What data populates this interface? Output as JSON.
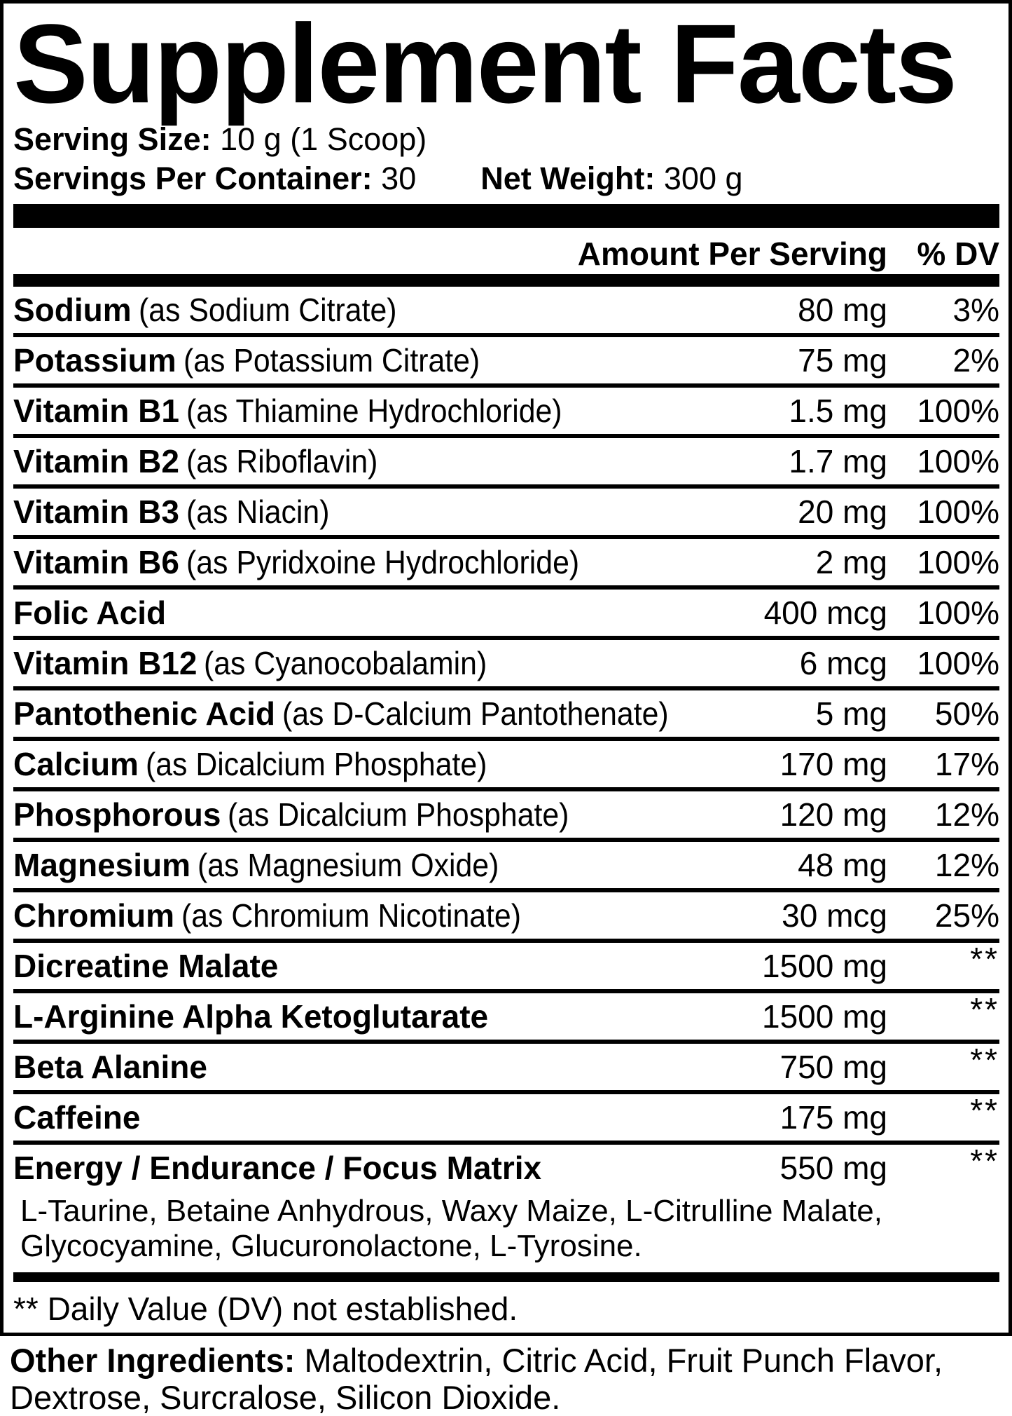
{
  "title": "Supplement Facts",
  "serving_info": {
    "serving_size_label": "Serving Size:",
    "serving_size_value": "10 g (1 Scoop)",
    "servings_per_container_label": "Servings Per Container:",
    "servings_per_container_value": "30",
    "net_weight_label": "Net Weight:",
    "net_weight_value": "300 g"
  },
  "table": {
    "header": {
      "amount": "Amount Per Serving",
      "dv": "% DV"
    },
    "rows": [
      {
        "name": "Sodium",
        "detail": "(as Sodium Citrate)",
        "amount": "80 mg",
        "dv": "3%"
      },
      {
        "name": "Potassium",
        "detail": "(as Potassium Citrate)",
        "amount": "75 mg",
        "dv": "2%"
      },
      {
        "name": "Vitamin B1",
        "detail": "(as Thiamine Hydrochloride)",
        "amount": "1.5 mg",
        "dv": "100%"
      },
      {
        "name": "Vitamin B2",
        "detail": "(as Riboflavin)",
        "amount": "1.7 mg",
        "dv": "100%"
      },
      {
        "name": "Vitamin B3",
        "detail": "(as Niacin)",
        "amount": "20 mg",
        "dv": "100%"
      },
      {
        "name": "Vitamin B6",
        "detail": "(as Pyridxoine Hydrochloride)",
        "amount": "2 mg",
        "dv": "100%"
      },
      {
        "name": "Folic Acid",
        "detail": "",
        "amount": "400 mcg",
        "dv": "100%"
      },
      {
        "name": "Vitamin B12",
        "detail": "(as Cyanocobalamin)",
        "amount": "6 mcg",
        "dv": "100%"
      },
      {
        "name": "Pantothenic Acid",
        "detail": "(as D-Calcium Pantothenate)",
        "amount": "5 mg",
        "dv": "50%"
      },
      {
        "name": "Calcium",
        "detail": "(as Dicalcium Phosphate)",
        "amount": "170 mg",
        "dv": "17%"
      },
      {
        "name": "Phosphorous",
        "detail": "(as Dicalcium Phosphate)",
        "amount": "120 mg",
        "dv": "12%"
      },
      {
        "name": "Magnesium",
        "detail": "(as Magnesium Oxide)",
        "amount": "48 mg",
        "dv": "12%"
      },
      {
        "name": "Chromium",
        "detail": "(as Chromium Nicotinate)",
        "amount": "30 mcg",
        "dv": "25%"
      },
      {
        "name": "Dicreatine Malate",
        "detail": "",
        "amount": "1500 mg",
        "dv": "**"
      },
      {
        "name": "L-Arginine Alpha Ketoglutarate",
        "detail": "",
        "amount": "1500 mg",
        "dv": "**"
      },
      {
        "name": "Beta Alanine",
        "detail": "",
        "amount": "750 mg",
        "dv": "**"
      },
      {
        "name": "Caffeine",
        "detail": "",
        "amount": "175 mg",
        "dv": "**"
      },
      {
        "name": "Energy / Endurance / Focus Matrix",
        "detail": "",
        "amount": "550 mg",
        "dv": "**"
      }
    ],
    "matrix_ingredients": "L-Taurine, Betaine Anhydrous, Waxy Maize, L-Citrulline Malate, Glycocyamine, Glucuronolactone, L-Tyrosine."
  },
  "footnote": "** Daily Value (DV) not established.",
  "other_ingredients": {
    "label": "Other Ingredients:",
    "value": "Maltodextrin, Citric Acid, Fruit Punch Flavor, Dextrose, Surcralose, Silicon Dioxide."
  },
  "colors": {
    "text": "#000000",
    "background": "#ffffff"
  }
}
